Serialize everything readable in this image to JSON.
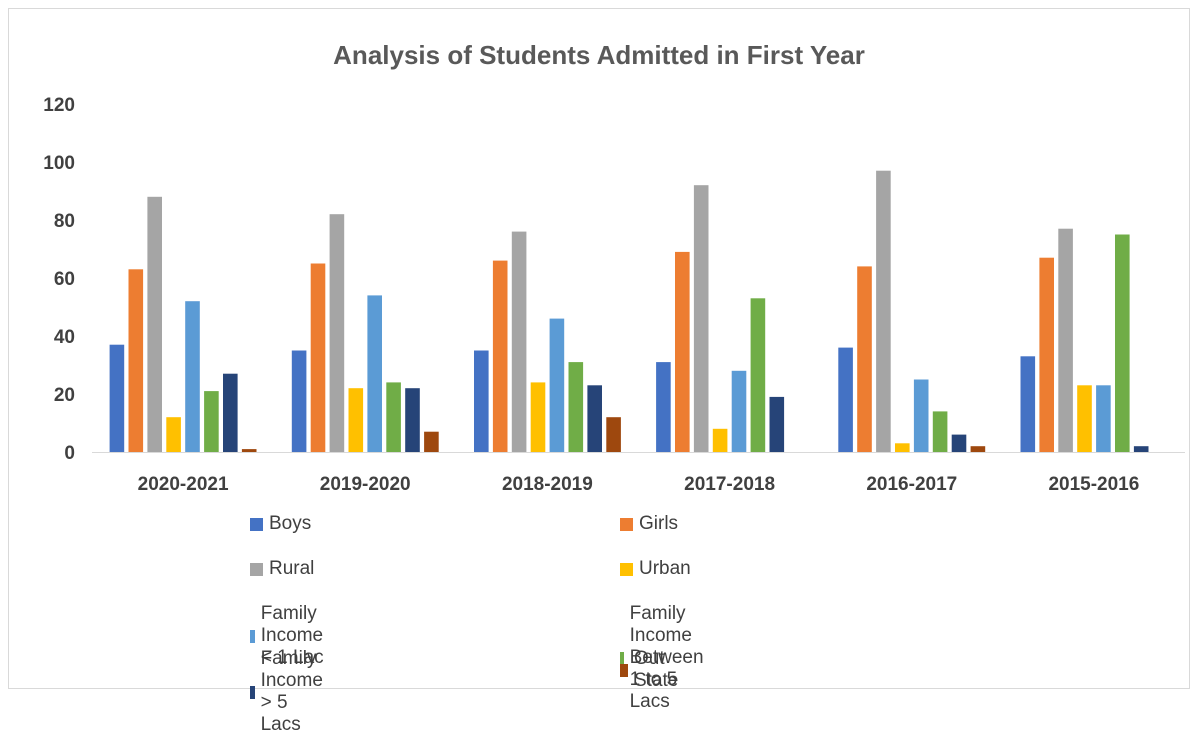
{
  "chart_data": {
    "type": "bar",
    "title": "Analysis of Students Admitted in First Year",
    "categories": [
      "2020-2021",
      "2019-2020",
      "2018-2019",
      "2017-2018",
      "2016-2017",
      "2015-2016"
    ],
    "ylim": [
      0,
      120
    ],
    "yticks": [
      0,
      20,
      40,
      60,
      80,
      100,
      120
    ],
    "grid": false,
    "legend_position": "bottom",
    "series": [
      {
        "name": "Boys",
        "color": "#4472C4",
        "values": [
          37,
          35,
          35,
          31,
          36,
          33
        ]
      },
      {
        "name": "Girls",
        "color": "#ED7D31",
        "values": [
          63,
          65,
          66,
          69,
          64,
          67
        ]
      },
      {
        "name": "Rural",
        "color": "#A5A5A5",
        "values": [
          88,
          82,
          76,
          92,
          97,
          77
        ]
      },
      {
        "name": "Urban",
        "color": "#FFC000",
        "values": [
          12,
          22,
          24,
          8,
          3,
          23
        ]
      },
      {
        "name": "Family Income < 1 Lac",
        "color": "#5B9BD5",
        "values": [
          52,
          54,
          46,
          28,
          25,
          23
        ]
      },
      {
        "name": "Family Income Between 1 to 5 Lacs",
        "color": "#70AD47",
        "values": [
          21,
          24,
          31,
          53,
          14,
          75
        ]
      },
      {
        "name": "Family Income > 5 Lacs",
        "color": "#264478",
        "values": [
          27,
          22,
          23,
          19,
          6,
          2
        ]
      },
      {
        "name": "Out State",
        "color": "#9E480E",
        "values": [
          1,
          7,
          12,
          0,
          2,
          0
        ]
      }
    ]
  }
}
